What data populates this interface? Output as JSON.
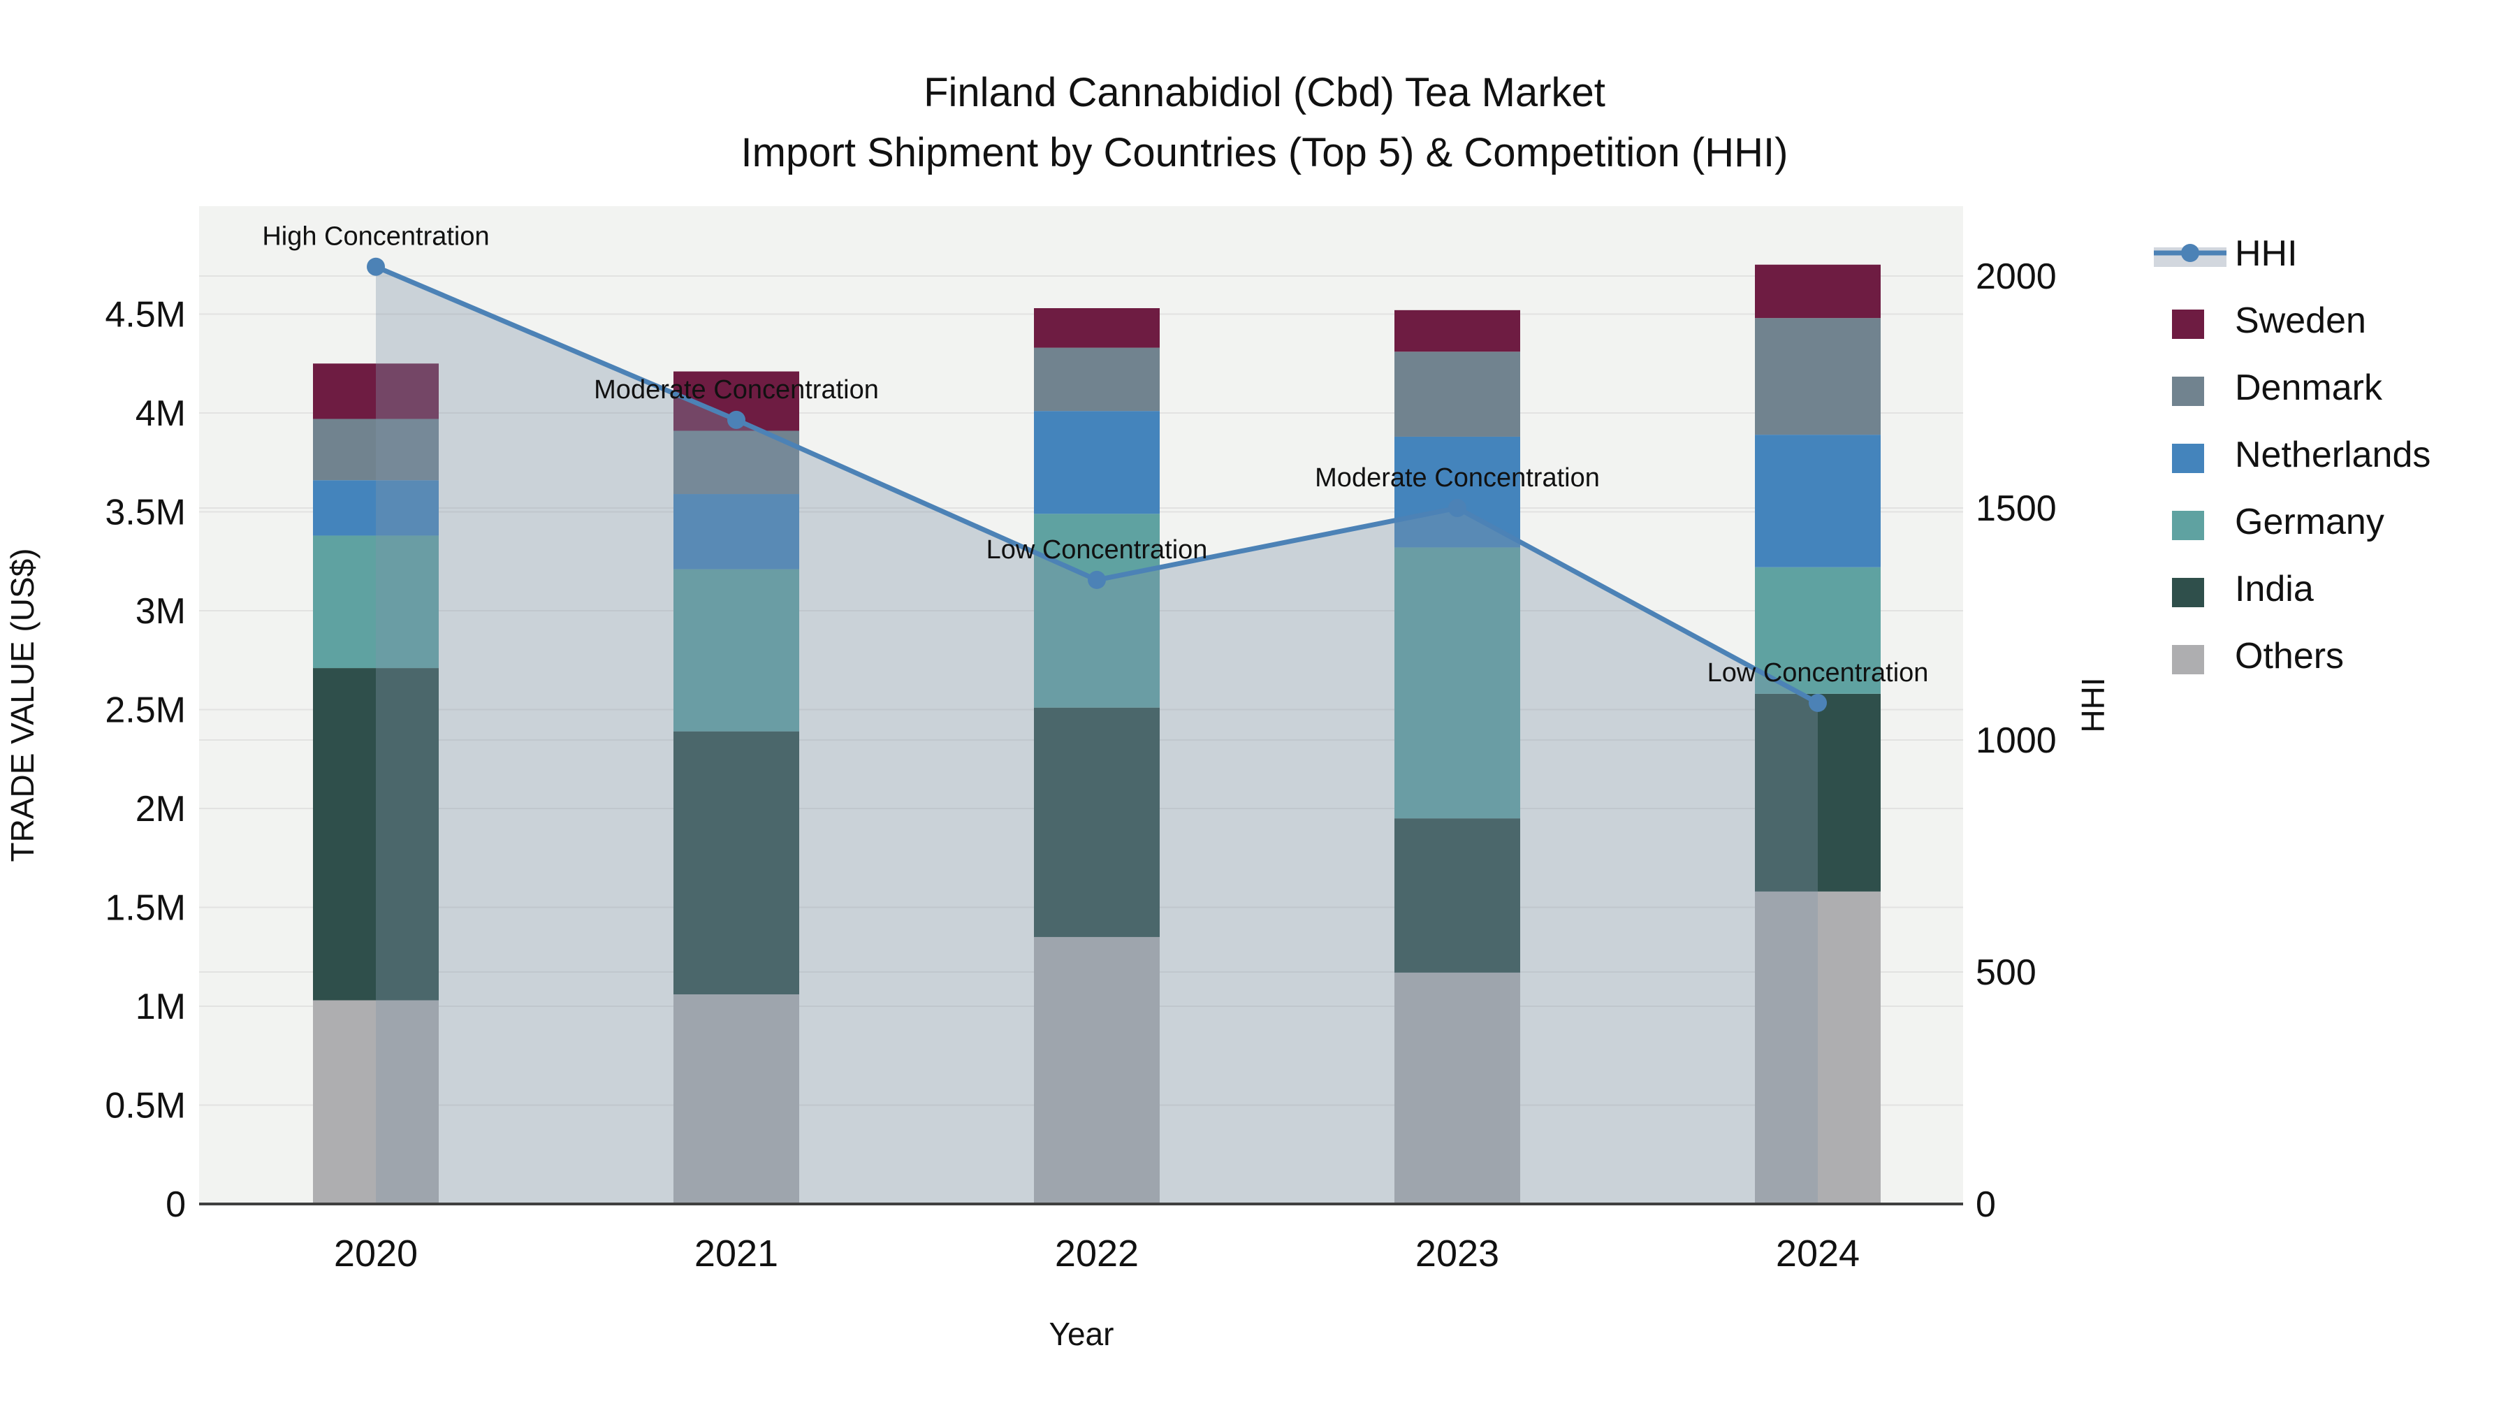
{
  "page": {
    "title_line1": "Finland Cannabidiol (Cbd) Tea Market",
    "title_line2": "Import Shipment by Countries (Top 5) & Competition (HHI)"
  },
  "chart_data": {
    "type": "bar",
    "subtype": "stacked-bars-with-hhi-line",
    "categories": [
      "2020",
      "2021",
      "2022",
      "2023",
      "2024"
    ],
    "x_title": "Year",
    "y_left": {
      "title": "TRADE VALUE (US$)",
      "tick_labels": [
        "0",
        "0.5M",
        "1M",
        "1.5M",
        "2M",
        "2.5M",
        "3M",
        "3.5M",
        "4M",
        "4.5M"
      ],
      "tick_values": [
        0,
        0.5,
        1,
        1.5,
        2,
        2.5,
        3,
        3.5,
        4,
        4.5
      ],
      "units": "millions of US$",
      "range": [
        0,
        5.05
      ]
    },
    "y_right": {
      "title": "HHI",
      "tick_labels": [
        "0",
        "500",
        "1000",
        "1500",
        "2000"
      ],
      "tick_values": [
        0,
        500,
        1000,
        1500,
        2000
      ],
      "range": [
        0,
        2150
      ]
    },
    "series": [
      {
        "name": "Others",
        "color": "#aeaeb0",
        "values": [
          1.03,
          1.06,
          1.35,
          1.17,
          1.58
        ]
      },
      {
        "name": "India",
        "color": "#2f4f4b",
        "values": [
          1.68,
          1.33,
          1.16,
          0.78,
          1.0
        ]
      },
      {
        "name": "Germany",
        "color": "#5fa2a1",
        "values": [
          0.67,
          0.82,
          0.98,
          1.37,
          0.64
        ]
      },
      {
        "name": "Netherlands",
        "color": "#4484bc",
        "values": [
          0.28,
          0.38,
          0.52,
          0.56,
          0.67
        ]
      },
      {
        "name": "Denmark",
        "color": "#71838f",
        "values": [
          0.31,
          0.32,
          0.32,
          0.43,
          0.59
        ]
      },
      {
        "name": "Sweden",
        "color": "#6e1c42",
        "values": [
          0.28,
          0.3,
          0.2,
          0.21,
          0.27
        ]
      }
    ],
    "bar_totals": [
      4.25,
      4.21,
      4.53,
      4.52,
      4.75
    ],
    "line_series": {
      "name": "HHI",
      "color": "#4c82b6",
      "fill_color": "#8294aa",
      "fill_opacity": 0.35,
      "legend_band_color": "#d2d7de",
      "values": [
        2020,
        1690,
        1345,
        1500,
        1080
      ]
    },
    "annotations": [
      {
        "x": "2020",
        "text": "High Concentration"
      },
      {
        "x": "2021",
        "text": "Moderate Concentration"
      },
      {
        "x": "2022",
        "text": "Low Concentration"
      },
      {
        "x": "2023",
        "text": "Moderate Concentration"
      },
      {
        "x": "2024",
        "text": "Low Concentration"
      }
    ],
    "legend_order": [
      "HHI",
      "Sweden",
      "Denmark",
      "Netherlands",
      "Germany",
      "India",
      "Others"
    ],
    "background": {
      "plot": "#f2f3f1",
      "paper": "#ffffff",
      "grid": "#e2e2e1",
      "zeroline": "#3f3f3f"
    }
  }
}
